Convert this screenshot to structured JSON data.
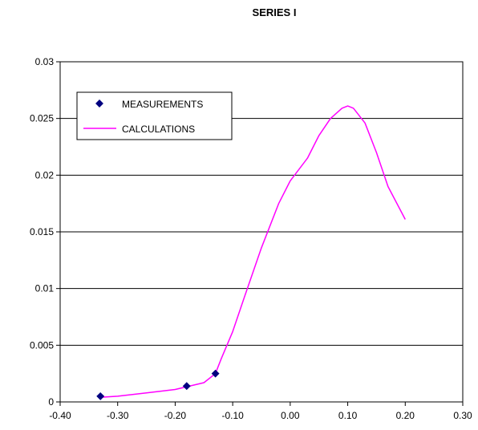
{
  "chart_data": {
    "type": "scatter",
    "title": "SERIES I",
    "xlabel": "",
    "ylabel": "",
    "xlim": [
      -0.4,
      0.3
    ],
    "ylim": [
      0,
      0.03
    ],
    "x_ticks": [
      "-0.40",
      "-0.30",
      "-0.20",
      "-0.10",
      "0.00",
      "0.10",
      "0.20",
      "0.30"
    ],
    "y_ticks": [
      "0",
      "0.005",
      "0.01",
      "0.015",
      "0.02",
      "0.025",
      "0.03"
    ],
    "grid": "horizontal",
    "legend_position": "top-left",
    "series": [
      {
        "name": "MEASUREMENTS",
        "kind": "markers",
        "marker": "diamond",
        "color": "#000080",
        "x": [
          -0.33,
          -0.18,
          -0.13
        ],
        "y": [
          0.0005,
          0.0014,
          0.0025
        ]
      },
      {
        "name": "CALCULATIONS",
        "kind": "line",
        "color": "#ff00ff",
        "x": [
          -0.33,
          -0.3,
          -0.25,
          -0.2,
          -0.15,
          -0.13,
          -0.12,
          -0.1,
          -0.08,
          -0.05,
          -0.02,
          0.0,
          0.03,
          0.05,
          0.07,
          0.09,
          0.1,
          0.11,
          0.13,
          0.15,
          0.17,
          0.2
        ],
        "y": [
          0.0004,
          0.0005,
          0.0008,
          0.0011,
          0.0017,
          0.0025,
          0.0038,
          0.0062,
          0.0092,
          0.0136,
          0.0175,
          0.0195,
          0.0215,
          0.0235,
          0.025,
          0.0259,
          0.0261,
          0.0259,
          0.0246,
          0.022,
          0.019,
          0.0161
        ]
      }
    ]
  }
}
